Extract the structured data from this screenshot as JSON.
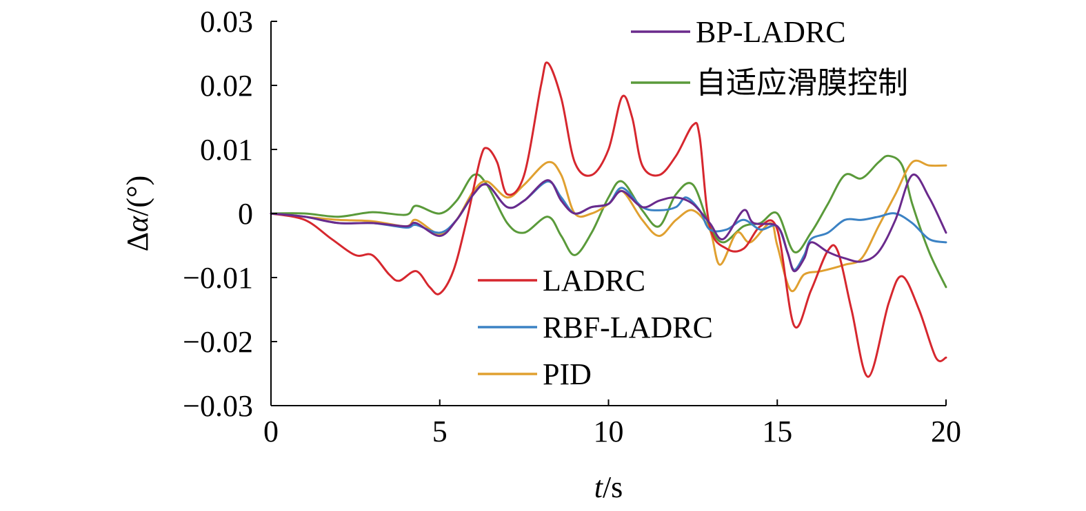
{
  "chart_data": {
    "type": "line",
    "xlabel": "t/s",
    "xlabel_parts": {
      "var": "t",
      "unit": "/s"
    },
    "ylabel": "Δα/(°)",
    "ylabel_parts": {
      "prefix": "Δ",
      "var": "α",
      "unit": "/(°)"
    },
    "xlim": [
      0,
      20
    ],
    "ylim": [
      -0.03,
      0.03
    ],
    "xticks": [
      0,
      5,
      10,
      15,
      20
    ],
    "xtick_labels": [
      "0",
      "5",
      "10",
      "15",
      "20"
    ],
    "yticks": [
      -0.03,
      -0.02,
      -0.01,
      0,
      0.01,
      0.02,
      0.03
    ],
    "ytick_labels": [
      "−0.03",
      "−0.02",
      "−0.01",
      "0",
      "0.01",
      "0.02",
      "0.03"
    ],
    "grid": false,
    "legend_groups": [
      {
        "placement": "top-right",
        "series": [
          "BP-LADRC",
          "自适应滑膜控制"
        ]
      },
      {
        "placement": "center",
        "series": [
          "LADRC",
          "RBF-LADRC",
          "PID"
        ]
      }
    ],
    "series": [
      {
        "name": "BP-LADRC",
        "color": "#6a2a8c",
        "x": [
          0,
          1,
          2,
          3,
          4,
          4.3,
          5,
          5.5,
          6,
          6.4,
          7,
          7.5,
          8.2,
          8.6,
          9,
          9.5,
          10,
          10.4,
          11,
          11.5,
          12,
          12.5,
          13,
          13.4,
          14,
          14.3,
          15,
          15.3,
          15.5,
          15.8,
          16,
          16.5,
          17,
          17.5,
          18,
          18.5,
          19,
          19.5,
          20
        ],
        "y": [
          0,
          -0.0005,
          -0.0015,
          -0.0015,
          -0.002,
          -0.0015,
          -0.0035,
          -0.001,
          0.003,
          0.0045,
          0.001,
          0.002,
          0.0052,
          0.002,
          0,
          0.001,
          0.0015,
          0.0035,
          0.001,
          0.002,
          0.0025,
          0.0015,
          -0.0015,
          -0.004,
          0.0005,
          -0.0015,
          -0.002,
          -0.006,
          -0.009,
          -0.007,
          -0.0045,
          -0.006,
          -0.007,
          -0.0075,
          -0.006,
          -0.001,
          0.006,
          0.0025,
          -0.003
        ]
      },
      {
        "name": "自适应滑膜控制",
        "color": "#5a9a3a",
        "x": [
          0,
          1,
          2,
          3,
          4,
          4.3,
          5,
          5.5,
          6,
          6.4,
          7,
          7.5,
          8.2,
          8.6,
          9,
          9.5,
          10,
          10.4,
          11,
          11.5,
          12,
          12.5,
          13,
          13.4,
          14,
          14.5,
          15,
          15.5,
          16,
          16.5,
          17,
          17.5,
          18,
          18.3,
          18.7,
          19,
          19.5,
          20
        ],
        "y": [
          0,
          0,
          -0.0005,
          0.0002,
          -0.0002,
          0.0012,
          0,
          0.002,
          0.006,
          0.0045,
          -0.0015,
          -0.003,
          -0.0005,
          -0.0035,
          -0.0065,
          -0.003,
          0.0025,
          0.005,
          0.0005,
          -0.002,
          0.003,
          0.0045,
          -0.002,
          -0.0045,
          -0.002,
          -0.0015,
          0,
          -0.006,
          -0.003,
          0.0015,
          0.006,
          0.0055,
          0.008,
          0.009,
          0.0075,
          0.0015,
          -0.006,
          -0.0115
        ]
      },
      {
        "name": "LADRC",
        "color": "#d6272e",
        "x": [
          0,
          1,
          1.8,
          2.5,
          3,
          3.5,
          3.8,
          4.3,
          4.7,
          5,
          5.4,
          5.8,
          6.2,
          6.4,
          6.7,
          7,
          7.5,
          8,
          8.2,
          8.6,
          9,
          9.5,
          10,
          10.4,
          10.7,
          11,
          11.5,
          12,
          12.5,
          12.7,
          13,
          13.5,
          14,
          14.5,
          15,
          15.5,
          16,
          16.5,
          16.8,
          17.2,
          17.7,
          18.3,
          18.7,
          19.2,
          19.7,
          20
        ],
        "y": [
          0,
          -0.001,
          -0.004,
          -0.0065,
          -0.0065,
          -0.0095,
          -0.0105,
          -0.009,
          -0.0115,
          -0.0125,
          -0.009,
          -0.001,
          0.0085,
          0.0102,
          0.008,
          0.003,
          0.006,
          0.02,
          0.0235,
          0.018,
          0.008,
          0.006,
          0.01,
          0.0182,
          0.015,
          0.0075,
          0.006,
          0.009,
          0.0138,
          0.012,
          -0.002,
          -0.0055,
          -0.0055,
          -0.002,
          -0.0025,
          -0.0175,
          -0.012,
          -0.0058,
          -0.006,
          -0.015,
          -0.0255,
          -0.014,
          -0.0098,
          -0.015,
          -0.0225,
          -0.0225
        ]
      },
      {
        "name": "RBF-LADRC",
        "color": "#3b82c4",
        "x": [
          0,
          1,
          2,
          3,
          4,
          4.3,
          5,
          5.5,
          6,
          6.4,
          7,
          7.5,
          8.2,
          8.6,
          9,
          9.5,
          10,
          10.4,
          11,
          11.5,
          12,
          12.3,
          12.7,
          13,
          13.5,
          14,
          14.5,
          15,
          15.3,
          15.5,
          15.8,
          16,
          16.5,
          17,
          17.5,
          18,
          18.5,
          19,
          19.5,
          20
        ],
        "y": [
          0,
          -0.0005,
          -0.0015,
          -0.0015,
          -0.0022,
          -0.0018,
          -0.003,
          -0.001,
          0.003,
          0.0045,
          0.001,
          0.002,
          0.005,
          0.0025,
          0,
          0.001,
          0.0015,
          0.004,
          0.001,
          0.0005,
          0.001,
          0.0025,
          0.0005,
          -0.0025,
          -0.0025,
          -0.001,
          -0.0025,
          -0.002,
          -0.006,
          -0.0088,
          -0.0065,
          -0.004,
          -0.003,
          -0.001,
          -0.001,
          -0.0005,
          0,
          -0.0015,
          -0.004,
          -0.0045
        ]
      },
      {
        "name": "PID",
        "color": "#e0a030",
        "x": [
          0,
          1,
          2,
          3,
          4,
          4.3,
          5,
          5.5,
          6,
          6.4,
          7,
          7.5,
          8.2,
          8.6,
          9,
          9.5,
          10,
          10.4,
          11,
          11.5,
          12,
          12.5,
          13,
          13.3,
          13.8,
          14.2,
          14.8,
          15,
          15.4,
          15.8,
          16.3,
          17,
          17.5,
          18,
          18.5,
          19,
          19.5,
          20
        ],
        "y": [
          0,
          -0.0005,
          -0.001,
          -0.0012,
          -0.002,
          -0.001,
          -0.0032,
          -0.001,
          0.0035,
          0.005,
          0.0025,
          0.0045,
          0.008,
          0.006,
          0,
          0,
          0.0015,
          0.0035,
          -0.001,
          -0.0035,
          -0.001,
          0.0005,
          -0.0025,
          -0.008,
          -0.003,
          -0.0045,
          -0.0015,
          -0.005,
          -0.012,
          -0.0095,
          -0.009,
          -0.008,
          -0.007,
          -0.002,
          0.003,
          0.008,
          0.0075,
          0.0075
        ]
      }
    ]
  }
}
